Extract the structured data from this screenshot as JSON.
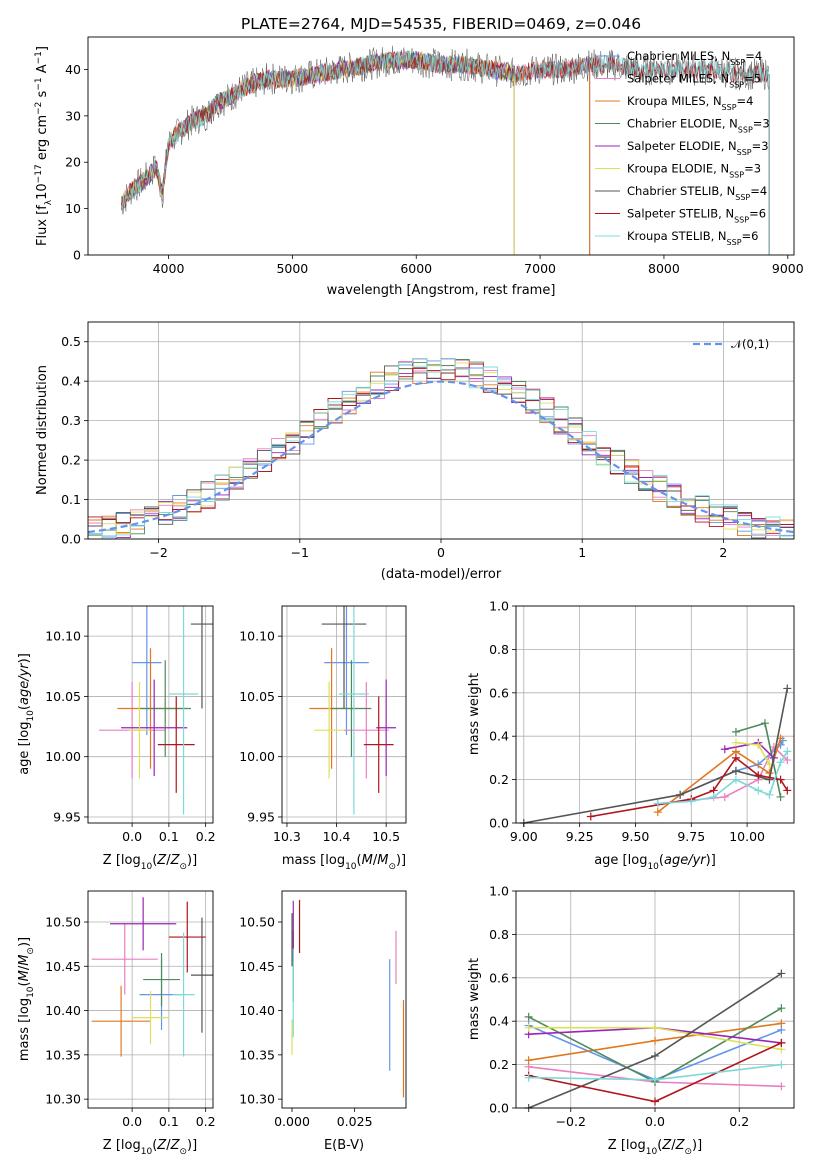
{
  "figure": {
    "title": "PLATE=2764, MJD=54535, FIBERID=0469, z=0.046",
    "colors": {
      "Chabrier MILES": "#6495ed",
      "Salpeter MILES": "#e97fc0",
      "Kroupa MILES": "#e07820",
      "Chabrier ELODIE": "#4f8a5a",
      "Salpeter ELODIE": "#9a26b5",
      "Kroupa ELODIE": "#dde05a",
      "Chabrier STELIB": "#555555",
      "Salpeter STELIB": "#b2151c",
      "Kroupa STELIB": "#7fd8d8"
    }
  },
  "chart_data": [
    {
      "id": "spectrum",
      "type": "line",
      "title": "PLATE=2764, MJD=54535, FIBERID=0469, z=0.046",
      "xlabel": "wavelength [Angstrom, rest frame]",
      "ylabel": "Flux [f_λ10^-17 erg cm^-2 s^-1 A^-1]",
      "xlim": [
        3350,
        9050
      ],
      "ylim": [
        0,
        47
      ],
      "xticks": [
        4000,
        5000,
        6000,
        7000,
        8000,
        9000
      ],
      "yticks": [
        0,
        10,
        20,
        30,
        40
      ],
      "legend_position": "right",
      "envelope": {
        "x": [
          3620,
          3700,
          3800,
          3900,
          3950,
          4000,
          4100,
          4200,
          4300,
          4400,
          4500,
          4600,
          4700,
          4800,
          4900,
          5000,
          5200,
          5400,
          5600,
          5800,
          6000,
          6200,
          6400,
          6600,
          6800,
          7000,
          7200,
          7400,
          7600,
          7800,
          8000,
          8200,
          8400,
          8600,
          8800
        ],
        "y": [
          11,
          14,
          16,
          19,
          13,
          24,
          27,
          29,
          30,
          33,
          34,
          36,
          37,
          38,
          38,
          38,
          39,
          40,
          41,
          42,
          42,
          41,
          41,
          40,
          39,
          40,
          40,
          41,
          41,
          40,
          40,
          40,
          40,
          39,
          39
        ]
      },
      "series": [
        {
          "name": "Chabrier MILES, N_SSP=4",
          "end_x": 7400
        },
        {
          "name": "Salpeter MILES, N_SSP=5",
          "end_x": 7400
        },
        {
          "name": "Kroupa MILES, N_SSP=4",
          "end_x": 7400
        },
        {
          "name": "Chabrier ELODIE, N_SSP=3",
          "end_x": 6790
        },
        {
          "name": "Salpeter ELODIE, N_SSP=3",
          "end_x": 6790
        },
        {
          "name": "Kroupa ELODIE, N_SSP=3",
          "end_x": 6790
        },
        {
          "name": "Chabrier STELIB, N_SSP=4",
          "end_x": 8850
        },
        {
          "name": "Salpeter STELIB, N_SSP=6",
          "end_x": 8850
        },
        {
          "name": "Kroupa STELIB, N_SSP=6",
          "end_x": 8850
        }
      ],
      "data_line_color": "#555555"
    },
    {
      "id": "residuals",
      "type": "line",
      "xlabel": "(data-model)/error",
      "ylabel": "Normed distribution",
      "xlim": [
        -2.5,
        2.5
      ],
      "ylim": [
        0,
        0.55
      ],
      "xticks": [
        -2,
        -1,
        0,
        1,
        2
      ],
      "yticks": [
        0.0,
        0.1,
        0.2,
        0.3,
        0.4,
        0.5
      ],
      "grid": true,
      "legend": "𝒩(0,1)",
      "legend_position": "top-right",
      "gaussian": {
        "mean": 0,
        "sigma": 1,
        "color": "#6495ed"
      },
      "bin_width": 0.1,
      "bin_start": -2.5
    },
    {
      "id": "age-vs-Z",
      "type": "scatter",
      "xlabel": "Z [log10(Z/Z⊙)]",
      "ylabel": "age [log10(age/yr)]",
      "xlim": [
        -0.12,
        0.22
      ],
      "ylim": [
        9.945,
        10.125
      ],
      "xticks": [
        0.0,
        0.1,
        0.2
      ],
      "yticks": [
        9.95,
        10.0,
        10.05,
        10.1
      ],
      "grid": true,
      "points": [
        {
          "series": "Chabrier MILES",
          "x": 0.04,
          "xerr": 0.04,
          "y": 10.078,
          "yerr": 0.06
        },
        {
          "series": "Salpeter MILES",
          "x": 0.0,
          "xerr": 0.09,
          "y": 10.022,
          "yerr": 0.04
        },
        {
          "series": "Kroupa MILES",
          "x": 0.05,
          "xerr": 0.09,
          "y": 10.04,
          "yerr": 0.05
        },
        {
          "series": "Chabrier ELODIE",
          "x": 0.09,
          "xerr": 0.07,
          "y": 10.04,
          "yerr": 0.04
        },
        {
          "series": "Salpeter ELODIE",
          "x": 0.06,
          "xerr": 0.09,
          "y": 10.024,
          "yerr": 0.04
        },
        {
          "series": "Kroupa ELODIE",
          "x": 0.02,
          "xerr": 0.03,
          "y": 10.022,
          "yerr": 0.04
        },
        {
          "series": "Chabrier STELIB",
          "x": 0.19,
          "xerr": 0.03,
          "y": 10.11,
          "yerr": 0.07
        },
        {
          "series": "Salpeter STELIB",
          "x": 0.12,
          "xerr": 0.05,
          "y": 10.01,
          "yerr": 0.04
        },
        {
          "series": "Kroupa STELIB",
          "x": 0.14,
          "xerr": 0.04,
          "y": 10.052,
          "yerr": 0.1
        }
      ]
    },
    {
      "id": "age-vs-mass",
      "type": "scatter",
      "xlabel": "mass [log10(M/M⊙)]",
      "ylabel": "",
      "xlim": [
        10.29,
        10.54
      ],
      "ylim": [
        9.945,
        10.125
      ],
      "xticks": [
        10.3,
        10.4,
        10.5
      ],
      "yticks": [
        9.95,
        10.0,
        10.05,
        10.1
      ],
      "grid": true,
      "points": [
        {
          "series": "Chabrier MILES",
          "x": 10.42,
          "xerr": 0.045,
          "y": 10.078,
          "yerr": 0.06
        },
        {
          "series": "Salpeter MILES",
          "x": 10.46,
          "xerr": 0.045,
          "y": 10.022,
          "yerr": 0.04
        },
        {
          "series": "Kroupa MILES",
          "x": 10.39,
          "xerr": 0.045,
          "y": 10.04,
          "yerr": 0.05
        },
        {
          "series": "Chabrier ELODIE",
          "x": 10.43,
          "xerr": 0.04,
          "y": 10.04,
          "yerr": 0.04
        },
        {
          "series": "Salpeter ELODIE",
          "x": 10.5,
          "xerr": 0.02,
          "y": 10.024,
          "yerr": 0.04
        },
        {
          "series": "Kroupa ELODIE",
          "x": 10.385,
          "xerr": 0.03,
          "y": 10.022,
          "yerr": 0.04
        },
        {
          "series": "Chabrier STELIB",
          "x": 10.415,
          "xerr": 0.045,
          "y": 10.11,
          "yerr": 0.07
        },
        {
          "series": "Salpeter STELIB",
          "x": 10.485,
          "xerr": 0.03,
          "y": 10.01,
          "yerr": 0.04
        },
        {
          "series": "Kroupa STELIB",
          "x": 10.435,
          "xerr": 0.03,
          "y": 10.052,
          "yerr": 0.1
        }
      ]
    },
    {
      "id": "massweight-vs-age",
      "type": "line",
      "xlabel": "age [log10(age/yr)]",
      "ylabel": "mass weight",
      "xlim": [
        8.965,
        10.21
      ],
      "ylim": [
        0,
        1
      ],
      "xticks": [
        9.0,
        9.25,
        9.5,
        9.75,
        10.0
      ],
      "yticks": [
        0.0,
        0.2,
        0.4,
        0.6,
        0.8,
        1.0
      ],
      "grid": true,
      "series": [
        {
          "name": "Chabrier MILES",
          "x": [
            9.7,
            9.95,
            10.05,
            10.15,
            10.16
          ],
          "y": [
            0.13,
            0.24,
            0.27,
            0.36,
            0.38
          ]
        },
        {
          "name": "Salpeter MILES",
          "x": [
            9.6,
            9.9,
            10.05,
            10.12,
            10.18
          ],
          "y": [
            0.09,
            0.12,
            0.2,
            0.35,
            0.29
          ]
        },
        {
          "name": "Kroupa MILES",
          "x": [
            9.6,
            9.95,
            10.1,
            10.15
          ],
          "y": [
            0.05,
            0.33,
            0.23,
            0.39
          ]
        },
        {
          "name": "Chabrier ELODIE",
          "x": [
            9.95,
            10.08,
            10.15
          ],
          "y": [
            0.42,
            0.46,
            0.12
          ]
        },
        {
          "name": "Salpeter ELODIE",
          "x": [
            9.9,
            10.05,
            10.12
          ],
          "y": [
            0.34,
            0.37,
            0.3
          ]
        },
        {
          "name": "Kroupa ELODIE",
          "x": [
            9.95,
            10.05,
            10.1
          ],
          "y": [
            0.37,
            0.36,
            0.27
          ]
        },
        {
          "name": "Chabrier STELIB",
          "x": [
            9.0,
            9.7,
            9.95,
            10.1,
            10.18
          ],
          "y": [
            0.0,
            0.13,
            0.24,
            0.2,
            0.62
          ]
        },
        {
          "name": "Salpeter STELIB",
          "x": [
            9.3,
            9.75,
            9.85,
            9.95,
            10.05,
            10.15,
            10.18
          ],
          "y": [
            0.03,
            0.11,
            0.15,
            0.3,
            0.22,
            0.2,
            0.15
          ]
        },
        {
          "name": "Kroupa STELIB",
          "x": [
            9.6,
            9.75,
            9.85,
            9.95,
            10.05,
            10.1,
            10.15,
            10.18
          ],
          "y": [
            0.09,
            0.1,
            0.12,
            0.2,
            0.15,
            0.13,
            0.28,
            0.33
          ]
        }
      ]
    },
    {
      "id": "mass-vs-Z",
      "type": "scatter",
      "xlabel": "Z [log10(Z/Z⊙)]",
      "ylabel": "mass [log10(M/M⊙)]",
      "xlim": [
        -0.12,
        0.22
      ],
      "ylim": [
        10.29,
        10.535
      ],
      "xticks": [
        0.0,
        0.1,
        0.2
      ],
      "yticks": [
        10.3,
        10.35,
        10.4,
        10.45,
        10.5
      ],
      "grid": true,
      "points": [
        {
          "series": "Chabrier MILES",
          "x": 0.08,
          "xerr": 0.06,
          "y": 10.418,
          "yerr": 0.04
        },
        {
          "series": "Salpeter MILES",
          "x": -0.02,
          "xerr": 0.09,
          "y": 10.458,
          "yerr": 0.04
        },
        {
          "series": "Kroupa MILES",
          "x": -0.03,
          "xerr": 0.08,
          "y": 10.388,
          "yerr": 0.04
        },
        {
          "series": "Chabrier ELODIE",
          "x": 0.08,
          "xerr": 0.05,
          "y": 10.435,
          "yerr": 0.03
        },
        {
          "series": "Salpeter ELODIE",
          "x": 0.03,
          "xerr": 0.09,
          "y": 10.498,
          "yerr": 0.03
        },
        {
          "series": "Kroupa ELODIE",
          "x": 0.05,
          "xerr": 0.05,
          "y": 10.392,
          "yerr": 0.03
        },
        {
          "series": "Chabrier STELIB",
          "x": 0.19,
          "xerr": 0.03,
          "y": 10.44,
          "yerr": 0.065
        },
        {
          "series": "Salpeter STELIB",
          "x": 0.15,
          "xerr": 0.05,
          "y": 10.483,
          "yerr": 0.04
        },
        {
          "series": "Kroupa STELIB",
          "x": 0.14,
          "xerr": 0.03,
          "y": 10.418,
          "yerr": 0.07
        }
      ]
    },
    {
      "id": "mass-vs-EBV",
      "type": "scatter",
      "xlabel": "E(B-V)",
      "ylabel": "",
      "xlim": [
        -0.004,
        0.0455
      ],
      "ylim": [
        10.29,
        10.535
      ],
      "xticks": [
        0.0,
        0.025
      ],
      "yticks": [
        10.3,
        10.35,
        10.4,
        10.45,
        10.5
      ],
      "grid": false,
      "points": [
        {
          "series": "Chabrier MILES",
          "x": 0.039,
          "xerr": 0.0,
          "y": 10.395,
          "yerr": 0.063
        },
        {
          "series": "Salpeter MILES",
          "x": 0.0415,
          "xerr": 0.0,
          "y": 10.46,
          "yerr": 0.03
        },
        {
          "series": "Kroupa MILES",
          "x": 0.0445,
          "xerr": 0.0,
          "y": 10.357,
          "yerr": 0.055
        },
        {
          "series": "Chabrier ELODIE",
          "x": 0.0005,
          "xerr": 0.0,
          "y": 10.45,
          "yerr": 0.04
        },
        {
          "series": "Salpeter ELODIE",
          "x": 0.0005,
          "xerr": 0.0,
          "y": 10.49,
          "yerr": 0.034
        },
        {
          "series": "Kroupa ELODIE",
          "x": 0.0,
          "xerr": 0.0,
          "y": 10.37,
          "yerr": 0.02
        },
        {
          "series": "Chabrier STELIB",
          "x": 0.0,
          "xerr": 0.0,
          "y": 10.48,
          "yerr": 0.03
        },
        {
          "series": "Salpeter STELIB",
          "x": 0.003,
          "xerr": 0.0,
          "y": 10.495,
          "yerr": 0.03
        },
        {
          "series": "Kroupa STELIB",
          "x": 0.0005,
          "xerr": 0.0,
          "y": 10.42,
          "yerr": 0.05
        }
      ]
    },
    {
      "id": "massweight-vs-Z",
      "type": "line",
      "xlabel": "Z [log10(Z/Z⊙)]",
      "ylabel": "mass weight",
      "xlim": [
        -0.33,
        0.33
      ],
      "ylim": [
        0,
        1
      ],
      "xticks": [
        -0.2,
        0.0,
        0.2
      ],
      "yticks": [
        0.0,
        0.2,
        0.4,
        0.6,
        0.8,
        1.0
      ],
      "grid": true,
      "series": [
        {
          "name": "Chabrier MILES",
          "x": [
            -0.3,
            0.0,
            0.3
          ],
          "y": [
            0.38,
            0.13,
            0.36
          ]
        },
        {
          "name": "Salpeter MILES",
          "x": [
            -0.3,
            0.0,
            0.3
          ],
          "y": [
            0.19,
            0.12,
            0.1
          ]
        },
        {
          "name": "Kroupa MILES",
          "x": [
            -0.3,
            0.0,
            0.3
          ],
          "y": [
            0.22,
            0.31,
            0.39
          ]
        },
        {
          "name": "Chabrier ELODIE",
          "x": [
            -0.3,
            0.0,
            0.3
          ],
          "y": [
            0.42,
            0.12,
            0.46
          ]
        },
        {
          "name": "Salpeter ELODIE",
          "x": [
            -0.3,
            0.0,
            0.3
          ],
          "y": [
            0.34,
            0.37,
            0.3
          ]
        },
        {
          "name": "Kroupa ELODIE",
          "x": [
            -0.3,
            0.0,
            0.3
          ],
          "y": [
            0.37,
            0.37,
            0.27
          ]
        },
        {
          "name": "Chabrier STELIB",
          "x": [
            -0.3,
            0.0,
            0.3
          ],
          "y": [
            0.0,
            0.24,
            0.62
          ]
        },
        {
          "name": "Salpeter STELIB",
          "x": [
            -0.3,
            0.0,
            0.3
          ],
          "y": [
            0.15,
            0.03,
            0.3
          ]
        },
        {
          "name": "Kroupa STELIB",
          "x": [
            -0.3,
            0.0,
            0.3
          ],
          "y": [
            0.14,
            0.13,
            0.2
          ]
        }
      ]
    }
  ]
}
